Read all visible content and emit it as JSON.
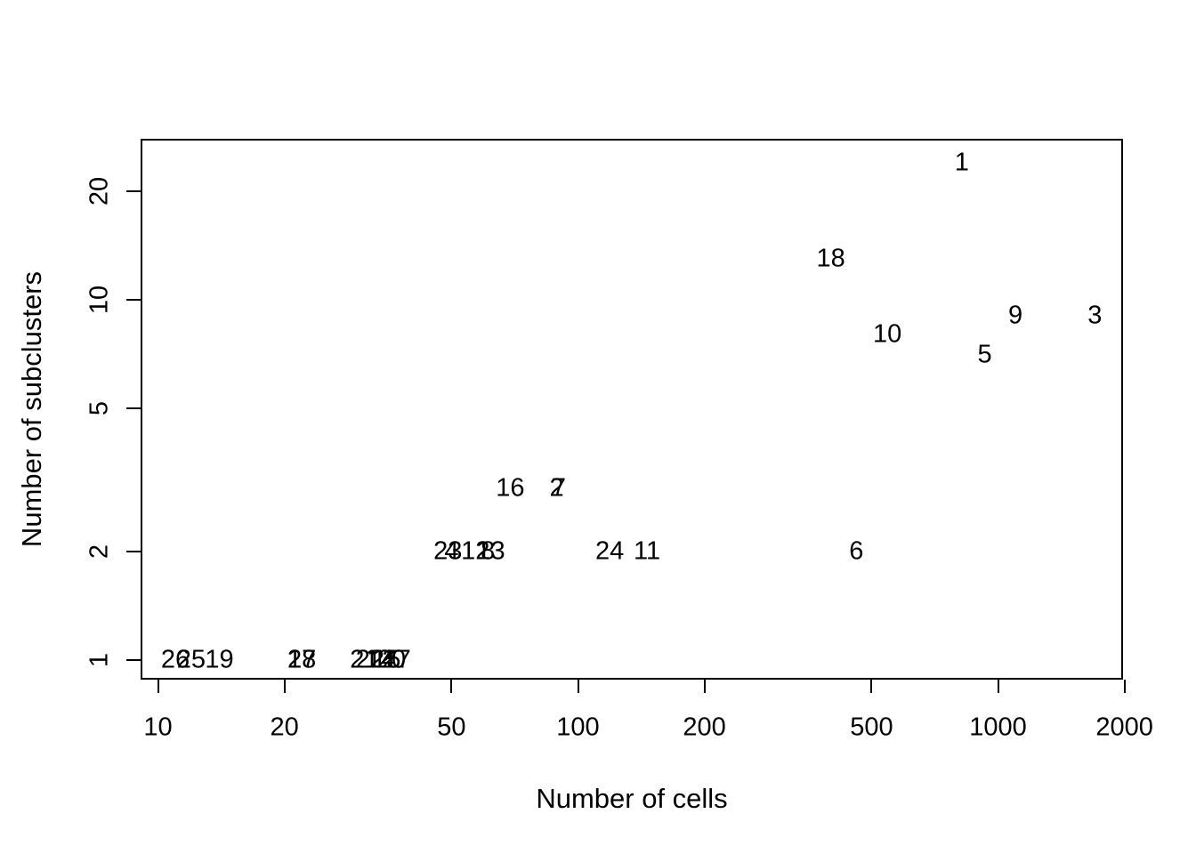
{
  "figure": {
    "background_color": "#ffffff",
    "axis_color": "#000000",
    "text_color": "#000000"
  },
  "chart_data": {
    "type": "scatter",
    "title": "",
    "xlabel": "Number of cells",
    "ylabel": "Number of subclusters",
    "x_scale": "log10",
    "y_scale": "log10",
    "xlim": [
      10,
      2000
    ],
    "ylim": [
      1,
      25
    ],
    "x_ticks": [
      10,
      20,
      50,
      100,
      200,
      500,
      1000,
      2000
    ],
    "y_ticks": [
      1,
      2,
      5,
      10,
      20
    ],
    "grid": false,
    "legend": false,
    "marker": "cluster-id-text-label",
    "points": [
      {
        "label": "1",
        "cells": 820,
        "subclusters": 24
      },
      {
        "label": "2",
        "cells": 89,
        "subclusters": 3
      },
      {
        "label": "3",
        "cells": 1700,
        "subclusters": 9
      },
      {
        "label": "4",
        "cells": 50,
        "subclusters": 2
      },
      {
        "label": "5",
        "cells": 930,
        "subclusters": 7
      },
      {
        "label": "6",
        "cells": 460,
        "subclusters": 2
      },
      {
        "label": "7",
        "cells": 90,
        "subclusters": 3
      },
      {
        "label": "8",
        "cells": 61,
        "subclusters": 2
      },
      {
        "label": "9",
        "cells": 1100,
        "subclusters": 9
      },
      {
        "label": "10",
        "cells": 545,
        "subclusters": 8
      },
      {
        "label": "11",
        "cells": 146,
        "subclusters": 2
      },
      {
        "label": "12",
        "cells": 57,
        "subclusters": 2
      },
      {
        "label": "13",
        "cells": 62,
        "subclusters": 2
      },
      {
        "label": "14",
        "cells": 34,
        "subclusters": 1
      },
      {
        "label": "15",
        "cells": 35,
        "subclusters": 1
      },
      {
        "label": "16",
        "cells": 69,
        "subclusters": 3
      },
      {
        "label": "17",
        "cells": 22,
        "subclusters": 1
      },
      {
        "label": "18",
        "cells": 400,
        "subclusters": 13
      },
      {
        "label": "19",
        "cells": 14,
        "subclusters": 1
      },
      {
        "label": "20",
        "cells": 36,
        "subclusters": 1
      },
      {
        "label": "21",
        "cells": 31,
        "subclusters": 1
      },
      {
        "label": "22",
        "cells": 32,
        "subclusters": 1
      },
      {
        "label": "23",
        "cells": 49,
        "subclusters": 2
      },
      {
        "label": "24",
        "cells": 119,
        "subclusters": 2
      },
      {
        "label": "25",
        "cells": 12,
        "subclusters": 1
      },
      {
        "label": "26",
        "cells": 11,
        "subclusters": 1
      },
      {
        "label": "27",
        "cells": 37,
        "subclusters": 1
      },
      {
        "label": "28",
        "cells": 22,
        "subclusters": 1
      }
    ]
  }
}
